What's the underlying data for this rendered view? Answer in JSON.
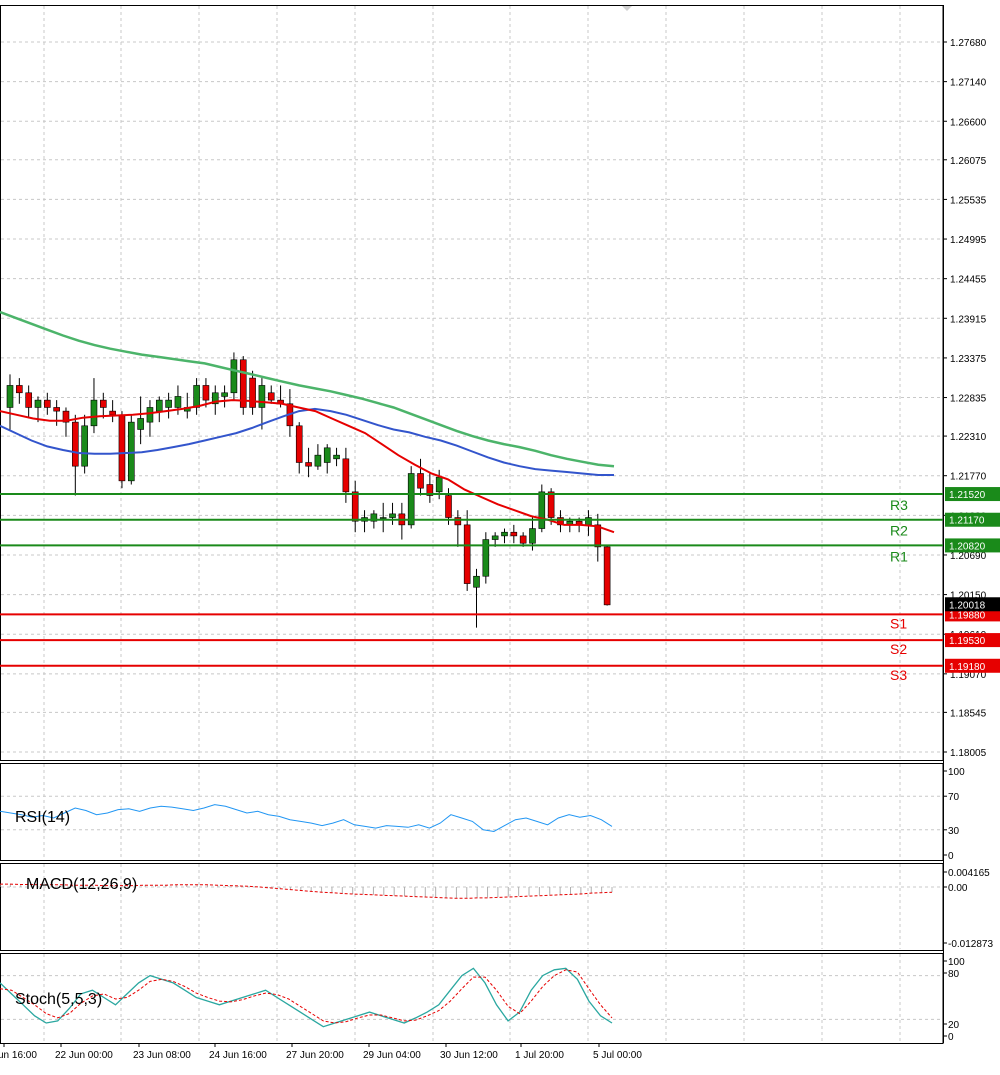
{
  "chart_data": [
    {
      "type": "candlestick",
      "price_axis": {
        "ylim": [
          1.18005,
          1.2822
        ],
        "ticks": [
          "1.27680",
          "1.27140",
          "1.26600",
          "1.26075",
          "1.25535",
          "1.24995",
          "1.24455",
          "1.23915",
          "1.23375",
          "1.22835",
          "1.22310",
          "1.21770",
          "1.21230",
          "1.20690",
          "1.20150",
          "1.19610",
          "1.19070",
          "1.18545",
          "1.18005"
        ]
      },
      "time_axis": {
        "ticks": [
          "un 16:00",
          "22 Jun 00:00",
          "23 Jun 08:00",
          "24 Jun 16:00",
          "27 Jun 20:00",
          "29 Jun 04:00",
          "30 Jun 12:00",
          "1 Jul 20:00",
          "5 Jul 00:00"
        ]
      },
      "current_price": "1.20018",
      "levels": [
        {
          "name": "R3",
          "value": "1.21520",
          "color": "#1a8a1a"
        },
        {
          "name": "R2",
          "value": "1.21170",
          "color": "#1a8a1a"
        },
        {
          "name": "R1",
          "value": "1.20820",
          "color": "#1a8a1a"
        },
        {
          "name": "S1",
          "value": "1.19880",
          "color": "#e60000"
        },
        {
          "name": "S2",
          "value": "1.19530",
          "color": "#e60000"
        },
        {
          "name": "S3",
          "value": "1.19180",
          "color": "#e60000"
        }
      ],
      "candles": [
        [
          1.227,
          1.2315,
          1.224,
          1.23
        ],
        [
          1.23,
          1.231,
          1.2275,
          1.229
        ],
        [
          1.229,
          1.23,
          1.2255,
          1.227
        ],
        [
          1.227,
          1.2285,
          1.225,
          1.228
        ],
        [
          1.228,
          1.229,
          1.226,
          1.227
        ],
        [
          1.227,
          1.228,
          1.2245,
          1.2265
        ],
        [
          1.2265,
          1.227,
          1.223,
          1.225
        ],
        [
          1.225,
          1.226,
          1.215,
          1.219
        ],
        [
          1.219,
          1.226,
          1.218,
          1.2245
        ],
        [
          1.2245,
          1.231,
          1.2235,
          1.228
        ],
        [
          1.228,
          1.229,
          1.2255,
          1.227
        ],
        [
          1.2265,
          1.228,
          1.225,
          1.226
        ],
        [
          1.226,
          1.2265,
          1.216,
          1.217
        ],
        [
          1.217,
          1.226,
          1.2165,
          1.225
        ],
        [
          1.224,
          1.2285,
          1.222,
          1.2255
        ],
        [
          1.225,
          1.228,
          1.223,
          1.227
        ],
        [
          1.2265,
          1.2285,
          1.225,
          1.228
        ],
        [
          1.227,
          1.229,
          1.2255,
          1.228
        ],
        [
          1.227,
          1.23,
          1.226,
          1.2285
        ],
        [
          1.2265,
          1.229,
          1.2255,
          1.227
        ],
        [
          1.227,
          1.231,
          1.226,
          1.23
        ],
        [
          1.23,
          1.231,
          1.227,
          1.228
        ],
        [
          1.2275,
          1.23,
          1.226,
          1.229
        ],
        [
          1.2285,
          1.23,
          1.227,
          1.229
        ],
        [
          1.229,
          1.2345,
          1.228,
          1.2335
        ],
        [
          1.2335,
          1.234,
          1.226,
          1.227
        ],
        [
          1.231,
          1.232,
          1.226,
          1.227
        ],
        [
          1.227,
          1.231,
          1.224,
          1.23
        ],
        [
          1.229,
          1.23,
          1.2275,
          1.228
        ],
        [
          1.228,
          1.23,
          1.227,
          1.2275
        ],
        [
          1.2275,
          1.2295,
          1.223,
          1.2245
        ],
        [
          1.2245,
          1.225,
          1.218,
          1.2195
        ],
        [
          1.2195,
          1.2215,
          1.2175,
          1.219
        ],
        [
          1.219,
          1.222,
          1.2185,
          1.2205
        ],
        [
          1.2195,
          1.222,
          1.218,
          1.2215
        ],
        [
          1.22,
          1.2215,
          1.219,
          1.2205
        ],
        [
          1.22,
          1.2215,
          1.214,
          1.2155
        ],
        [
          1.2155,
          1.217,
          1.21,
          1.2115
        ],
        [
          1.2115,
          1.213,
          1.21,
          1.212
        ],
        [
          1.2115,
          1.213,
          1.2105,
          1.2125
        ],
        [
          1.212,
          1.214,
          1.21,
          1.212
        ],
        [
          1.212,
          1.214,
          1.211,
          1.2125
        ],
        [
          1.2125,
          1.214,
          1.209,
          1.211
        ],
        [
          1.211,
          1.219,
          1.2105,
          1.218
        ],
        [
          1.218,
          1.22,
          1.215,
          1.216
        ],
        [
          1.2165,
          1.218,
          1.214,
          1.215
        ],
        [
          1.2155,
          1.2185,
          1.2145,
          1.2175
        ],
        [
          1.215,
          1.216,
          1.211,
          1.212
        ],
        [
          1.212,
          1.213,
          1.208,
          1.211
        ],
        [
          1.211,
          1.213,
          1.202,
          1.203
        ],
        [
          1.2025,
          1.205,
          1.197,
          1.204
        ],
        [
          1.204,
          1.21,
          1.203,
          1.209
        ],
        [
          1.209,
          1.21,
          1.208,
          1.2095
        ],
        [
          1.2095,
          1.2105,
          1.2085,
          1.21
        ],
        [
          1.21,
          1.211,
          1.2085,
          1.2095
        ],
        [
          1.2095,
          1.21,
          1.208,
          1.2085
        ],
        [
          1.2085,
          1.212,
          1.2075,
          1.2105
        ],
        [
          1.2105,
          1.2165,
          1.21,
          1.2155
        ],
        [
          1.2155,
          1.216,
          1.211,
          1.212
        ],
        [
          1.212,
          1.213,
          1.21,
          1.211
        ],
        [
          1.211,
          1.212,
          1.21,
          1.2115
        ],
        [
          1.2115,
          1.212,
          1.21,
          1.211
        ],
        [
          1.211,
          1.213,
          1.2095,
          1.212
        ],
        [
          1.211,
          1.2125,
          1.206,
          1.208
        ],
        [
          1.208,
          1.2082,
          1.2,
          1.2001
        ]
      ],
      "ma_slow": [
        1.24,
        1.2392,
        1.2384,
        1.2376,
        1.2368,
        1.2361,
        1.2355,
        1.235,
        1.2346,
        1.2342,
        1.2339,
        1.2336,
        1.2333,
        1.233,
        1.2325,
        1.232,
        1.2315,
        1.231,
        1.2305,
        1.23,
        1.2296,
        1.2292,
        1.2287,
        1.2282,
        1.2276,
        1.227,
        1.2262,
        1.2254,
        1.2246,
        1.2238,
        1.2231,
        1.2225,
        1.222,
        1.2216,
        1.2211,
        1.2205,
        1.22,
        1.2196,
        1.2192,
        1.219
      ],
      "ma_mid": [
        1.2245,
        1.2235,
        1.2225,
        1.2217,
        1.2212,
        1.2208,
        1.2207,
        1.2207,
        1.2208,
        1.2209,
        1.2212,
        1.2216,
        1.222,
        1.2225,
        1.223,
        1.2235,
        1.2242,
        1.225,
        1.2258,
        1.2265,
        1.2268,
        1.2265,
        1.226,
        1.2253,
        1.2246,
        1.224,
        1.2236,
        1.223,
        1.2225,
        1.2218,
        1.221,
        1.2202,
        1.2195,
        1.219,
        1.2186,
        1.2184,
        1.2182,
        1.218,
        1.2178,
        1.2178
      ],
      "ma_fast": [
        1.2265,
        1.226,
        1.2255,
        1.2252,
        1.2252,
        1.2256,
        1.2258,
        1.2259,
        1.226,
        1.2262,
        1.2265,
        1.2268,
        1.2272,
        1.2278,
        1.228,
        1.2279,
        1.2277,
        1.2275,
        1.227,
        1.2265,
        1.2255,
        1.2245,
        1.2235,
        1.222,
        1.2205,
        1.2192,
        1.218,
        1.2172,
        1.2158,
        1.2148,
        1.2138,
        1.213,
        1.2122,
        1.2117,
        1.211,
        1.211,
        1.2108,
        1.21
      ]
    },
    {
      "type": "line",
      "label": "RSI(14)",
      "ylim": [
        0,
        100
      ],
      "ticks": [
        "100",
        "70",
        "30",
        "0"
      ],
      "values": [
        52,
        50,
        48,
        45,
        47,
        44,
        50,
        56,
        53,
        48,
        50,
        54,
        55,
        52,
        56,
        58,
        57,
        55,
        53,
        56,
        60,
        58,
        54,
        50,
        52,
        48,
        46,
        42,
        40,
        38,
        35,
        38,
        42,
        36,
        34,
        32,
        35,
        34,
        33,
        36,
        32,
        38,
        48,
        44,
        40,
        30,
        28,
        35,
        42,
        44,
        40,
        36,
        44,
        48,
        45,
        47,
        42,
        34
      ]
    },
    {
      "type": "bar",
      "label": "MACD(12,26,9)",
      "ticks": [
        "0.004165",
        "0.00",
        "-0.012873"
      ],
      "histogram": [
        0.0008,
        0.0008,
        0.0007,
        0.0006,
        0.0006,
        0.0006,
        0.0005,
        0.0005,
        0.0004,
        0.0004,
        0.0004,
        0.0004,
        0.0004,
        0.0005,
        0.0005,
        0.0006,
        0.0006,
        0.0006,
        0.0006,
        0.0006,
        0.0005,
        0.0004,
        0.0003,
        0.0002,
        0.0001,
        0.0,
        -0.0002,
        -0.0004,
        -0.0006,
        -0.0008,
        -0.001,
        -0.0012,
        -0.0014,
        -0.0015,
        -0.0016,
        -0.0017,
        -0.0018,
        -0.0019,
        -0.002,
        -0.0021,
        -0.0022,
        -0.0023,
        -0.0024,
        -0.0024,
        -0.0025,
        -0.0025,
        -0.0024,
        -0.0024,
        -0.0023,
        -0.0022,
        -0.0021,
        -0.002,
        -0.0019,
        -0.0018,
        -0.0017,
        -0.0016,
        -0.0015,
        -0.0014,
        -0.0013,
        -0.0012
      ],
      "signal": [
        0.0008,
        0.0008,
        0.0007,
        0.0007,
        0.0006,
        0.0006,
        0.0006,
        0.0005,
        0.0005,
        0.0005,
        0.0004,
        0.0004,
        0.0004,
        0.0004,
        0.0005,
        0.0005,
        0.0005,
        0.0006,
        0.0006,
        0.0006,
        0.0006,
        0.0005,
        0.0004,
        0.0003,
        0.0002,
        0.0,
        -0.0002,
        -0.0004,
        -0.0006,
        -0.0008,
        -0.001,
        -0.0012,
        -0.0013,
        -0.0015,
        -0.0016,
        -0.0017,
        -0.0018,
        -0.0019,
        -0.002,
        -0.0021,
        -0.0022,
        -0.0023,
        -0.0024,
        -0.0025,
        -0.0026,
        -0.0026,
        -0.0025,
        -0.0025,
        -0.0024,
        -0.0023,
        -0.0022,
        -0.0021,
        -0.002,
        -0.0019,
        -0.0018,
        -0.0017,
        -0.0016,
        -0.0014,
        -0.0013,
        -0.0012
      ]
    },
    {
      "type": "line",
      "label": "Stoch(5,5,3)",
      "ylim": [
        0,
        100
      ],
      "ticks": [
        "100",
        "80",
        "20",
        "0"
      ],
      "main": [
        70,
        55,
        40,
        25,
        15,
        18,
        35,
        55,
        60,
        50,
        40,
        55,
        70,
        80,
        75,
        70,
        60,
        50,
        45,
        40,
        45,
        50,
        55,
        60,
        50,
        40,
        30,
        20,
        10,
        15,
        20,
        25,
        30,
        25,
        20,
        15,
        22,
        30,
        40,
        60,
        80,
        90,
        70,
        40,
        18,
        30,
        60,
        80,
        88,
        90,
        75,
        45,
        25,
        15
      ],
      "signal": [
        62,
        60,
        50,
        40,
        28,
        22,
        28,
        42,
        52,
        55,
        48,
        50,
        60,
        72,
        75,
        72,
        65,
        56,
        50,
        45,
        44,
        47,
        52,
        56,
        54,
        48,
        38,
        28,
        18,
        15,
        17,
        22,
        26,
        26,
        22,
        18,
        19,
        25,
        32,
        45,
        62,
        78,
        78,
        60,
        38,
        28,
        45,
        65,
        80,
        88,
        85,
        62,
        40,
        22
      ]
    }
  ]
}
